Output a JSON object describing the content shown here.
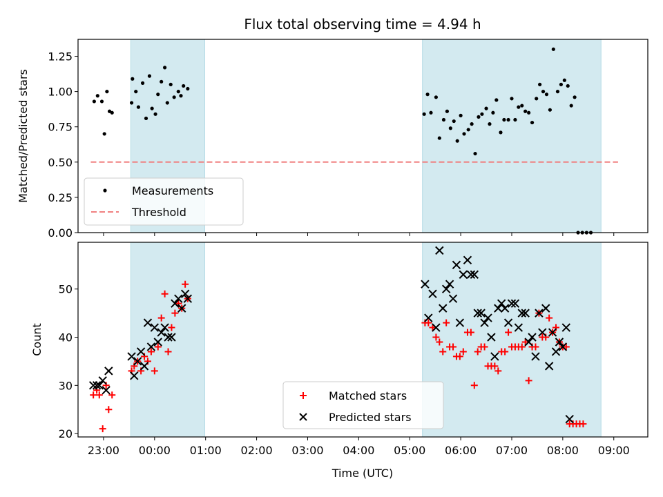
{
  "chart_data": {
    "title": "Flux total observing time = 4.94 h",
    "xlabel": "Time (UTC)",
    "x_ticks": [
      "23:00",
      "00:00",
      "01:00",
      "02:00",
      "03:00",
      "04:00",
      "05:00",
      "06:00",
      "07:00",
      "08:00",
      "09:00"
    ],
    "x_range": [
      "22:30",
      "09:40"
    ],
    "shaded_intervals": [
      [
        "23:32",
        "00:59"
      ],
      [
        "05:15",
        "08:45"
      ]
    ],
    "shade_color": "#d3eaf0",
    "panels": [
      {
        "type": "scatter",
        "ylabel": "Matched/Predicted stars",
        "ylim": [
          0,
          1.37
        ],
        "y_ticks": [
          "0.00",
          "0.25",
          "0.50",
          "0.75",
          "1.00",
          "1.25"
        ],
        "legend_position": "lower-left",
        "series": [
          {
            "name": "Measurements",
            "marker": "dot",
            "color": "#000000",
            "points": [
              [
                "22:49",
                0.93
              ],
              [
                "22:53",
                0.97
              ],
              [
                "22:58",
                0.93
              ],
              [
                "23:01",
                0.7
              ],
              [
                "23:04",
                1.0
              ],
              [
                "23:07",
                0.86
              ],
              [
                "23:10",
                0.85
              ],
              [
                "23:33",
                0.92
              ],
              [
                "23:34",
                1.09
              ],
              [
                "23:38",
                1.0
              ],
              [
                "23:41",
                0.89
              ],
              [
                "23:46",
                1.06
              ],
              [
                "23:50",
                0.81
              ],
              [
                "23:54",
                1.11
              ],
              [
                "23:57",
                0.88
              ],
              [
                "00:01",
                0.84
              ],
              [
                "00:04",
                0.98
              ],
              [
                "00:08",
                1.07
              ],
              [
                "00:12",
                1.17
              ],
              [
                "00:15",
                0.92
              ],
              [
                "00:19",
                1.05
              ],
              [
                "00:23",
                0.96
              ],
              [
                "00:28",
                1.0
              ],
              [
                "00:31",
                0.97
              ],
              [
                "00:34",
                1.04
              ],
              [
                "00:39",
                1.02
              ],
              [
                "05:17",
                0.84
              ],
              [
                "05:21",
                0.98
              ],
              [
                "05:25",
                0.85
              ],
              [
                "05:31",
                0.96
              ],
              [
                "05:35",
                0.67
              ],
              [
                "05:40",
                0.8
              ],
              [
                "05:44",
                0.86
              ],
              [
                "05:48",
                0.74
              ],
              [
                "05:52",
                0.79
              ],
              [
                "05:56",
                0.65
              ],
              [
                "06:00",
                0.83
              ],
              [
                "06:04",
                0.7
              ],
              [
                "06:09",
                0.73
              ],
              [
                "06:13",
                0.77
              ],
              [
                "06:17",
                0.56
              ],
              [
                "06:21",
                0.82
              ],
              [
                "06:25",
                0.84
              ],
              [
                "06:30",
                0.88
              ],
              [
                "06:34",
                0.77
              ],
              [
                "06:38",
                0.85
              ],
              [
                "06:42",
                0.94
              ],
              [
                "06:47",
                0.71
              ],
              [
                "06:51",
                0.8
              ],
              [
                "06:56",
                0.8
              ],
              [
                "07:00",
                0.95
              ],
              [
                "07:04",
                0.8
              ],
              [
                "07:08",
                0.89
              ],
              [
                "07:12",
                0.9
              ],
              [
                "07:16",
                0.86
              ],
              [
                "07:20",
                0.85
              ],
              [
                "07:24",
                0.78
              ],
              [
                "07:29",
                0.95
              ],
              [
                "07:33",
                1.05
              ],
              [
                "07:37",
                1.0
              ],
              [
                "07:41",
                0.98
              ],
              [
                "07:45",
                0.87
              ],
              [
                "07:49",
                1.3
              ],
              [
                "07:54",
                1.0
              ],
              [
                "07:58",
                1.05
              ],
              [
                "08:02",
                1.08
              ],
              [
                "08:06",
                1.04
              ],
              [
                "08:10",
                0.9
              ],
              [
                "08:14",
                0.96
              ],
              [
                "08:18",
                0.0
              ],
              [
                "08:23",
                0.0
              ],
              [
                "08:28",
                0.0
              ],
              [
                "08:33",
                0.0
              ]
            ]
          },
          {
            "name": "Threshold",
            "marker": "dashed-line",
            "color": "#f08080",
            "points": [
              [
                "22:45",
                0.5
              ],
              [
                "09:05",
                0.5
              ]
            ]
          }
        ]
      },
      {
        "type": "scatter",
        "ylabel": "Count",
        "ylim": [
          19.3,
          59.7
        ],
        "y_ticks": [
          "20",
          "30",
          "40",
          "50"
        ],
        "legend_position": "lower-center",
        "series": [
          {
            "name": "Matched stars",
            "marker": "plus",
            "color": "#ff0000",
            "points": [
              [
                "22:48",
                28
              ],
              [
                "22:52",
                29
              ],
              [
                "22:55",
                28
              ],
              [
                "22:59",
                21
              ],
              [
                "23:03",
                30
              ],
              [
                "23:06",
                25
              ],
              [
                "23:10",
                28
              ],
              [
                "23:33",
                33
              ],
              [
                "23:36",
                34
              ],
              [
                "23:40",
                35
              ],
              [
                "23:44",
                33
              ],
              [
                "23:48",
                36
              ],
              [
                "23:52",
                35
              ],
              [
                "23:56",
                37
              ],
              [
                "00:00",
                33
              ],
              [
                "00:04",
                38
              ],
              [
                "00:08",
                44
              ],
              [
                "00:12",
                49
              ],
              [
                "00:16",
                37
              ],
              [
                "00:20",
                42
              ],
              [
                "00:24",
                45
              ],
              [
                "00:28",
                47
              ],
              [
                "00:32",
                46
              ],
              [
                "00:36",
                51
              ],
              [
                "00:39",
                48
              ],
              [
                "05:18",
                43
              ],
              [
                "05:22",
                43
              ],
              [
                "05:27",
                42
              ],
              [
                "05:31",
                40
              ],
              [
                "05:35",
                39
              ],
              [
                "05:39",
                37
              ],
              [
                "05:43",
                43
              ],
              [
                "05:47",
                38
              ],
              [
                "05:51",
                38
              ],
              [
                "05:55",
                36
              ],
              [
                "05:59",
                36
              ],
              [
                "06:03",
                37
              ],
              [
                "06:08",
                41
              ],
              [
                "06:12",
                41
              ],
              [
                "06:16",
                30
              ],
              [
                "06:20",
                37
              ],
              [
                "06:24",
                38
              ],
              [
                "06:28",
                38
              ],
              [
                "06:32",
                34
              ],
              [
                "06:36",
                34
              ],
              [
                "06:40",
                34
              ],
              [
                "06:44",
                33
              ],
              [
                "06:48",
                37
              ],
              [
                "06:52",
                37
              ],
              [
                "06:56",
                41
              ],
              [
                "07:00",
                38
              ],
              [
                "07:04",
                38
              ],
              [
                "07:08",
                38
              ],
              [
                "07:12",
                38
              ],
              [
                "07:16",
                39
              ],
              [
                "07:20",
                31
              ],
              [
                "07:24",
                38
              ],
              [
                "07:28",
                38
              ],
              [
                "07:32",
                45
              ],
              [
                "07:36",
                40
              ],
              [
                "07:40",
                40
              ],
              [
                "07:44",
                44
              ],
              [
                "07:48",
                41
              ],
              [
                "07:52",
                42
              ],
              [
                "07:56",
                39
              ],
              [
                "08:00",
                38
              ],
              [
                "08:04",
                38
              ],
              [
                "08:08",
                22
              ],
              [
                "08:12",
                22
              ],
              [
                "08:16",
                22
              ],
              [
                "08:20",
                22
              ],
              [
                "08:24",
                22
              ]
            ]
          },
          {
            "name": "Predicted stars",
            "marker": "x",
            "color": "#000000",
            "points": [
              [
                "22:48",
                30
              ],
              [
                "22:52",
                30
              ],
              [
                "22:55",
                30
              ],
              [
                "22:59",
                31
              ],
              [
                "23:03",
                29
              ],
              [
                "23:06",
                33
              ],
              [
                "23:33",
                36
              ],
              [
                "23:36",
                32
              ],
              [
                "23:40",
                35
              ],
              [
                "23:44",
                37
              ],
              [
                "23:48",
                34
              ],
              [
                "23:52",
                43
              ],
              [
                "23:56",
                38
              ],
              [
                "00:00",
                42
              ],
              [
                "00:04",
                39
              ],
              [
                "00:08",
                41
              ],
              [
                "00:12",
                42
              ],
              [
                "00:16",
                40
              ],
              [
                "00:20",
                40
              ],
              [
                "00:24",
                47
              ],
              [
                "00:28",
                48
              ],
              [
                "00:32",
                46
              ],
              [
                "00:36",
                49
              ],
              [
                "00:39",
                48
              ],
              [
                "05:18",
                51
              ],
              [
                "05:22",
                44
              ],
              [
                "05:27",
                49
              ],
              [
                "05:31",
                42
              ],
              [
                "05:35",
                58
              ],
              [
                "05:39",
                46
              ],
              [
                "05:43",
                50
              ],
              [
                "05:47",
                51
              ],
              [
                "05:51",
                48
              ],
              [
                "05:55",
                55
              ],
              [
                "05:59",
                43
              ],
              [
                "06:03",
                53
              ],
              [
                "06:08",
                56
              ],
              [
                "06:12",
                53
              ],
              [
                "06:16",
                53
              ],
              [
                "06:20",
                45
              ],
              [
                "06:24",
                45
              ],
              [
                "06:28",
                43
              ],
              [
                "06:32",
                44
              ],
              [
                "06:36",
                40
              ],
              [
                "06:40",
                36
              ],
              [
                "06:44",
                46
              ],
              [
                "06:48",
                47
              ],
              [
                "06:52",
                46
              ],
              [
                "06:56",
                43
              ],
              [
                "07:00",
                47
              ],
              [
                "07:04",
                47
              ],
              [
                "07:08",
                42
              ],
              [
                "07:12",
                45
              ],
              [
                "07:16",
                45
              ],
              [
                "07:20",
                39
              ],
              [
                "07:24",
                40
              ],
              [
                "07:28",
                36
              ],
              [
                "07:32",
                45
              ],
              [
                "07:36",
                41
              ],
              [
                "07:40",
                46
              ],
              [
                "07:44",
                34
              ],
              [
                "07:48",
                41
              ],
              [
                "07:52",
                37
              ],
              [
                "07:56",
                39
              ],
              [
                "08:00",
                38
              ],
              [
                "08:04",
                42
              ],
              [
                "08:08",
                23
              ]
            ]
          }
        ]
      }
    ]
  }
}
